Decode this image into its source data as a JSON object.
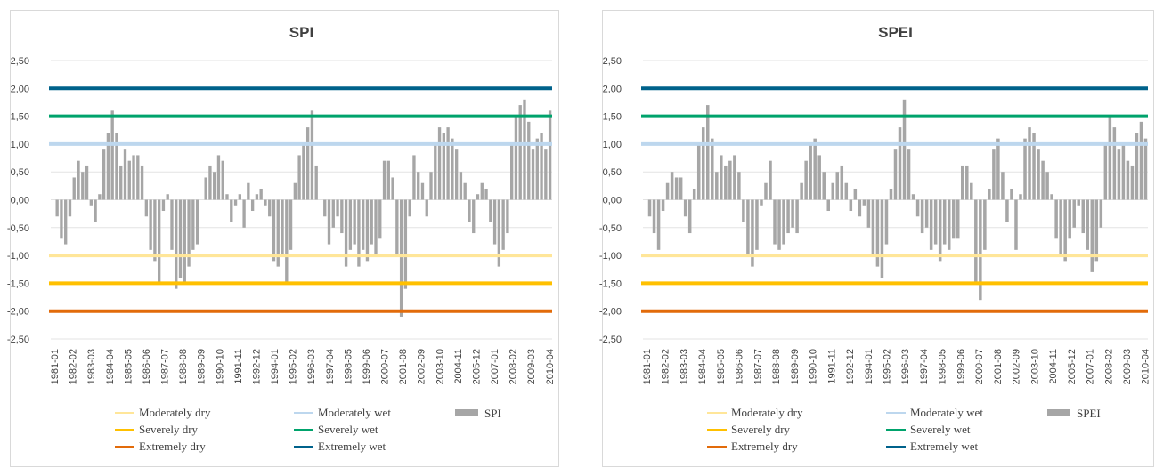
{
  "chart_data": [
    {
      "type": "bar",
      "title": "SPI",
      "xlabel": "",
      "ylabel": "",
      "ylim": [
        -2.5,
        2.5
      ],
      "yticks": [
        "2,50",
        "2,00",
        "1,50",
        "1,00",
        "0,50",
        "0,00",
        "-0,50",
        "-1,00",
        "-1,50",
        "-2,00",
        "-2,50"
      ],
      "xticks": [
        "1981-01",
        "1982-02",
        "1983-03",
        "1984-04",
        "1985-05",
        "1986-06",
        "1987-07",
        "1988-08",
        "1989-09",
        "1990-10",
        "1991-11",
        "1992-12",
        "1994-01",
        "1995-02",
        "1996-03",
        "1997-04",
        "1998-05",
        "1999-06",
        "2000-07",
        "2001-08",
        "2002-09",
        "2003-10",
        "2004-11",
        "2005-12",
        "2007-01",
        "2008-02",
        "2009-03",
        "2010-04"
      ],
      "grid": true,
      "legend_position": "bottom",
      "thresholds": [
        {
          "name": "Moderately dry",
          "value": -1.0,
          "color": "#ffe699"
        },
        {
          "name": "Moderately wet",
          "value": 1.0,
          "color": "#bdd7ee"
        },
        {
          "name": "Severely dry",
          "value": -1.5,
          "color": "#ffc000"
        },
        {
          "name": "Severely wet",
          "value": 1.5,
          "color": "#00a36c"
        },
        {
          "name": "Extremely dry",
          "value": -2.0,
          "color": "#e26b0a"
        },
        {
          "name": "Extremely wet",
          "value": 2.0,
          "color": "#00628b"
        }
      ],
      "series": [
        {
          "name": "SPI",
          "color": "#a6a6a6",
          "start_year": 1981,
          "months_per_value": 3,
          "values": [
            0,
            -0.3,
            -0.7,
            -0.8,
            -0.3,
            0.4,
            0.7,
            0.5,
            0.6,
            -0.1,
            -0.4,
            0.1,
            0.9,
            1.2,
            1.6,
            1.2,
            0.6,
            0.9,
            0.7,
            0.8,
            0.8,
            0.6,
            -0.3,
            -0.9,
            -1.1,
            -1.5,
            -0.2,
            0.1,
            -0.9,
            -1.6,
            -1.4,
            -1.5,
            -1.2,
            -0.9,
            -0.8,
            0,
            0.4,
            0.6,
            0.5,
            0.8,
            0.7,
            0.1,
            -0.4,
            -0.1,
            0.1,
            -0.5,
            0.3,
            -0.2,
            0.1,
            0.2,
            -0.1,
            -0.3,
            -1.1,
            -1.2,
            -1.0,
            -1.5,
            -0.9,
            0.3,
            0.8,
            1.0,
            1.3,
            1.6,
            0.6,
            0,
            -0.3,
            -0.8,
            -0.5,
            -0.3,
            -0.6,
            -1.2,
            -0.9,
            -0.8,
            -1.2,
            -0.9,
            -1.1,
            -0.8,
            -1.0,
            -0.7,
            0.7,
            0.7,
            0.4,
            -1.0,
            -2.1,
            -1.6,
            -0.3,
            0.8,
            0.5,
            0.3,
            -0.3,
            0.5,
            1.0,
            1.3,
            1.2,
            1.3,
            1.1,
            0.9,
            0.5,
            0.3,
            -0.4,
            -0.6,
            0.1,
            0.3,
            0.2,
            -0.4,
            -0.8,
            -1.2,
            -0.9,
            -0.6,
            1.0,
            1.5,
            1.7,
            1.8,
            1.4,
            0.9,
            1.1,
            1.2,
            0.9,
            1.6
          ]
        }
      ],
      "legend_series": "SPI"
    },
    {
      "type": "bar",
      "title": "SPEI",
      "xlabel": "",
      "ylabel": "",
      "ylim": [
        -2.5,
        2.5
      ],
      "yticks": [
        "2,50",
        "2,00",
        "1,50",
        "1,00",
        "0,50",
        "0,00",
        "-0,50",
        "-1,00",
        "-1,50",
        "-2,00",
        "-2,50"
      ],
      "xticks": [
        "1981-01",
        "1982-02",
        "1983-03",
        "1984-04",
        "1985-05",
        "1986-06",
        "1987-07",
        "1988-08",
        "1989-09",
        "1990-10",
        "1991-11",
        "1992-12",
        "1994-01",
        "1995-02",
        "1996-03",
        "1997-04",
        "1998-05",
        "1999-06",
        "2000-07",
        "2001-08",
        "2002-09",
        "2003-10",
        "2004-11",
        "2005-12",
        "2007-01",
        "2008-02",
        "2009-03",
        "2010-04"
      ],
      "grid": true,
      "legend_position": "bottom",
      "thresholds": [
        {
          "name": "Moderately dry",
          "value": -1.0,
          "color": "#ffe699"
        },
        {
          "name": "Moderately wet",
          "value": 1.0,
          "color": "#bdd7ee"
        },
        {
          "name": "Severely dry",
          "value": -1.5,
          "color": "#ffc000"
        },
        {
          "name": "Severely wet",
          "value": 1.5,
          "color": "#00a36c"
        },
        {
          "name": "Extremely dry",
          "value": -2.0,
          "color": "#e26b0a"
        },
        {
          "name": "Extremely wet",
          "value": 2.0,
          "color": "#00628b"
        }
      ],
      "series": [
        {
          "name": "SPEI",
          "color": "#a6a6a6",
          "start_year": 1981,
          "months_per_value": 3,
          "values": [
            0,
            -0.3,
            -0.6,
            -0.9,
            -0.2,
            0.3,
            0.5,
            0.4,
            0.4,
            -0.3,
            -0.6,
            0.2,
            1.0,
            1.3,
            1.7,
            1.1,
            0.5,
            0.8,
            0.6,
            0.7,
            0.8,
            0.5,
            -0.4,
            -1.0,
            -1.2,
            -0.9,
            -0.1,
            0.3,
            0.7,
            -0.8,
            -0.9,
            -0.8,
            -0.6,
            -0.5,
            -0.6,
            0.3,
            0.7,
            1.0,
            1.1,
            0.8,
            0.5,
            -0.2,
            0.3,
            0.5,
            0.6,
            0.3,
            -0.2,
            0.2,
            -0.3,
            -0.1,
            -0.5,
            -1.0,
            -1.2,
            -1.4,
            -0.8,
            0.2,
            0.9,
            1.3,
            1.8,
            0.9,
            0.1,
            -0.3,
            -0.6,
            -0.5,
            -0.9,
            -0.8,
            -1.1,
            -0.8,
            -0.9,
            -0.7,
            -0.7,
            0.6,
            0.6,
            0.3,
            -1.5,
            -1.8,
            -0.9,
            0.2,
            0.9,
            1.1,
            0.5,
            -0.4,
            0.2,
            -0.9,
            0.1,
            1.1,
            1.3,
            1.2,
            0.9,
            0.7,
            0.5,
            0.1,
            -0.7,
            -1.0,
            -1.1,
            -0.7,
            -0.5,
            -0.1,
            -0.6,
            -0.9,
            -1.3,
            -1.1,
            -0.5,
            1.0,
            1.5,
            1.3,
            0.9,
            1.0,
            0.7,
            0.6,
            1.2,
            1.4,
            1.1
          ]
        }
      ],
      "legend_series": "SPEI"
    }
  ]
}
